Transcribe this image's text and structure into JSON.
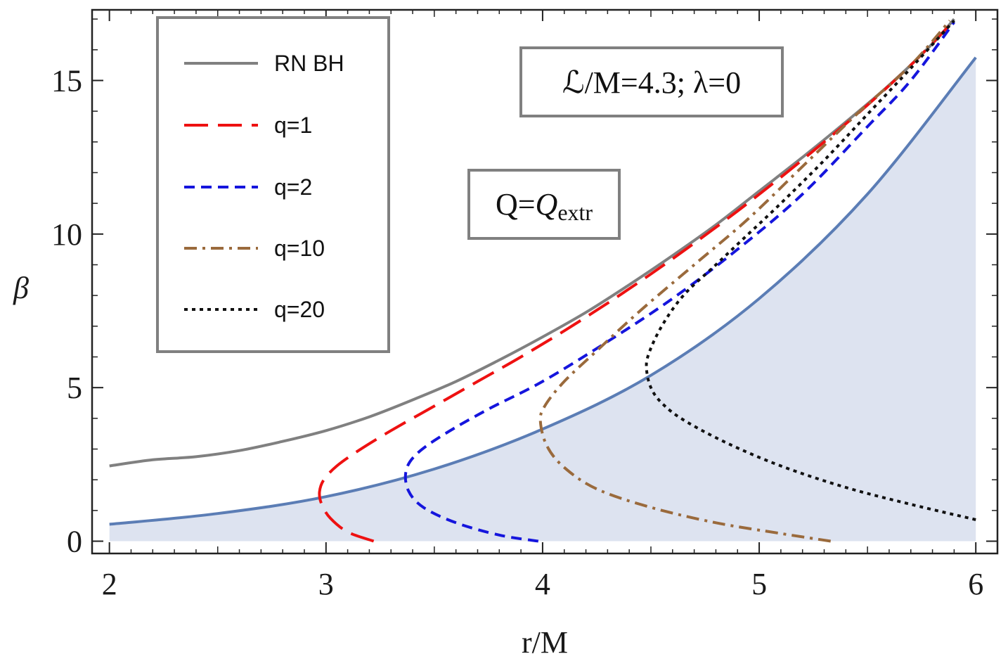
{
  "chart_data": {
    "type": "line",
    "title": "",
    "xlabel": "r/M",
    "ylabel": "β",
    "xlim": [
      1.92,
      6.1
    ],
    "ylim": [
      -0.4,
      17.3
    ],
    "xticks": [
      2,
      3,
      4,
      5,
      6
    ],
    "yticks": [
      0,
      5,
      10,
      15
    ],
    "legend": {
      "placement": "top-left",
      "entries": [
        {
          "label": "RN BH",
          "color": "#808080",
          "style": "solid"
        },
        {
          "label": "q=1",
          "color": "#ee1111",
          "style": "long-dash"
        },
        {
          "label": "q=2",
          "color": "#1515dd",
          "style": "dash"
        },
        {
          "label": "q=10",
          "color": "#9a6a3c",
          "style": "dash-dot"
        },
        {
          "label": "q=20",
          "color": "#111111",
          "style": "dot"
        }
      ]
    },
    "annotations": [
      {
        "label": "ℒ/M=4.3; λ=0",
        "placement": "top-center"
      },
      {
        "label": "Q=",
        "italic": "Q",
        "subscript": "extr",
        "placement": "center-left"
      }
    ],
    "boundary": {
      "name": "shaded region boundary",
      "color": "#5b7db5",
      "fill": "#dde3f0",
      "x": [
        2.0,
        2.5,
        3.0,
        3.5,
        4.0,
        4.5,
        5.0,
        5.5,
        6.0
      ],
      "y": [
        0.55,
        0.9,
        1.45,
        2.35,
        3.65,
        5.4,
        7.9,
        11.3,
        15.75
      ]
    },
    "series": [
      {
        "name": "RN BH",
        "x": [
          2.0,
          2.2,
          2.4,
          2.6,
          2.8,
          3.0,
          3.2,
          3.4,
          3.6,
          3.8,
          4.0,
          4.2,
          4.4,
          4.6,
          4.8,
          5.0,
          5.2,
          5.4,
          5.6,
          5.8,
          5.9
        ],
        "y": [
          2.45,
          2.65,
          2.75,
          2.95,
          3.25,
          3.6,
          4.05,
          4.6,
          5.2,
          5.9,
          6.65,
          7.45,
          8.35,
          9.3,
          10.3,
          11.4,
          12.5,
          13.65,
          14.85,
          16.2,
          17.0
        ]
      },
      {
        "name": "q=1",
        "x": [
          3.22,
          3.1,
          3.02,
          2.98,
          2.97,
          2.99,
          3.05,
          3.15,
          3.3,
          3.5,
          3.7,
          3.9,
          4.1,
          4.3,
          4.5,
          4.7,
          4.9,
          5.1,
          5.3,
          5.5,
          5.7,
          5.9
        ],
        "y": [
          0.0,
          0.3,
          0.75,
          1.2,
          1.6,
          2.0,
          2.45,
          2.95,
          3.6,
          4.4,
          5.2,
          6.0,
          6.85,
          7.75,
          8.7,
          9.7,
          10.75,
          11.85,
          13.0,
          14.2,
          15.5,
          16.95
        ]
      },
      {
        "name": "q=2",
        "x": [
          3.98,
          3.8,
          3.6,
          3.45,
          3.38,
          3.37,
          3.42,
          3.55,
          3.75,
          4.0,
          4.3,
          4.6,
          4.9,
          5.2,
          5.5,
          5.7,
          5.9
        ],
        "y": [
          0.0,
          0.2,
          0.6,
          1.1,
          1.65,
          2.3,
          2.85,
          3.5,
          4.3,
          5.2,
          6.5,
          7.9,
          9.5,
          11.3,
          13.5,
          15.0,
          16.9
        ]
      },
      {
        "name": "q=10",
        "x": [
          5.33,
          5.1,
          4.8,
          4.5,
          4.25,
          4.1,
          4.02,
          3.99,
          4.01,
          4.1,
          4.25,
          4.45,
          4.7,
          4.95,
          5.2,
          5.45,
          5.7,
          5.88
        ],
        "y": [
          0.0,
          0.25,
          0.6,
          1.1,
          1.7,
          2.4,
          3.1,
          3.9,
          4.4,
          5.2,
          6.2,
          7.5,
          9.0,
          10.5,
          12.2,
          13.9,
          15.5,
          16.95
        ]
      },
      {
        "name": "q=20",
        "x": [
          6.0,
          5.7,
          5.4,
          5.1,
          4.85,
          4.65,
          4.55,
          4.5,
          4.48,
          4.49,
          4.55,
          4.65,
          4.8,
          4.95,
          5.1,
          5.3,
          5.5,
          5.7,
          5.9
        ],
        "y": [
          0.7,
          1.2,
          1.75,
          2.45,
          3.2,
          3.95,
          4.5,
          5.0,
          5.6,
          6.1,
          7.0,
          8.0,
          9.0,
          10.0,
          11.0,
          12.4,
          13.9,
          15.4,
          16.95
        ]
      }
    ]
  }
}
